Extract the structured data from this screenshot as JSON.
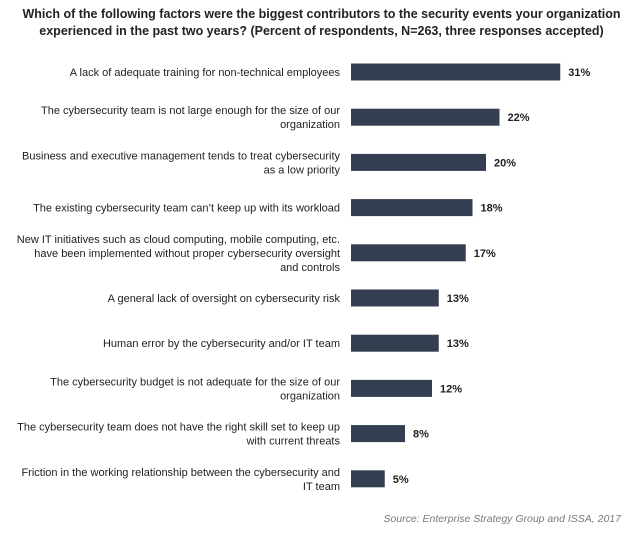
{
  "chart_data": {
    "type": "bar",
    "orientation": "horizontal",
    "title_lines": [
      "Which of the following factors were the biggest contributors to the security events your organization",
      "experienced in the past two years? (Percent of respondents, N=263, three responses accepted)"
    ],
    "categories": [
      [
        "A lack of adequate training for non-technical employees"
      ],
      [
        "The cybersecurity team is not large enough for the size of our",
        "organization"
      ],
      [
        "Business and executive management tends to treat cybersecurity",
        "as a low priority"
      ],
      [
        "The existing cybersecurity team can’t keep up with its workload"
      ],
      [
        "New IT initiatives such as cloud computing, mobile computing, etc.",
        "have been implemented without proper cybersecurity oversight",
        "and controls"
      ],
      [
        "A general lack of oversight on cybersecurity risk"
      ],
      [
        "Human error by the cybersecurity and/or IT team"
      ],
      [
        "The cybersecurity budget is not adequate for the size of our",
        "organization"
      ],
      [
        "The cybersecurity team does not have the right skill set to keep up",
        "with current threats"
      ],
      [
        "Friction in the working relationship between the cybersecurity and",
        "IT team"
      ]
    ],
    "values": [
      31,
      22,
      20,
      18,
      17,
      13,
      13,
      12,
      8,
      5
    ],
    "value_labels": [
      "31%",
      "22%",
      "20%",
      "18%",
      "17%",
      "13%",
      "13%",
      "12%",
      "8%",
      "5%"
    ],
    "value_unit": "%",
    "axis_visible": false,
    "grid": false,
    "bar_color": "#333f50",
    "source": "Source: Enterprise Strategy Group and ISSA, 2017"
  }
}
